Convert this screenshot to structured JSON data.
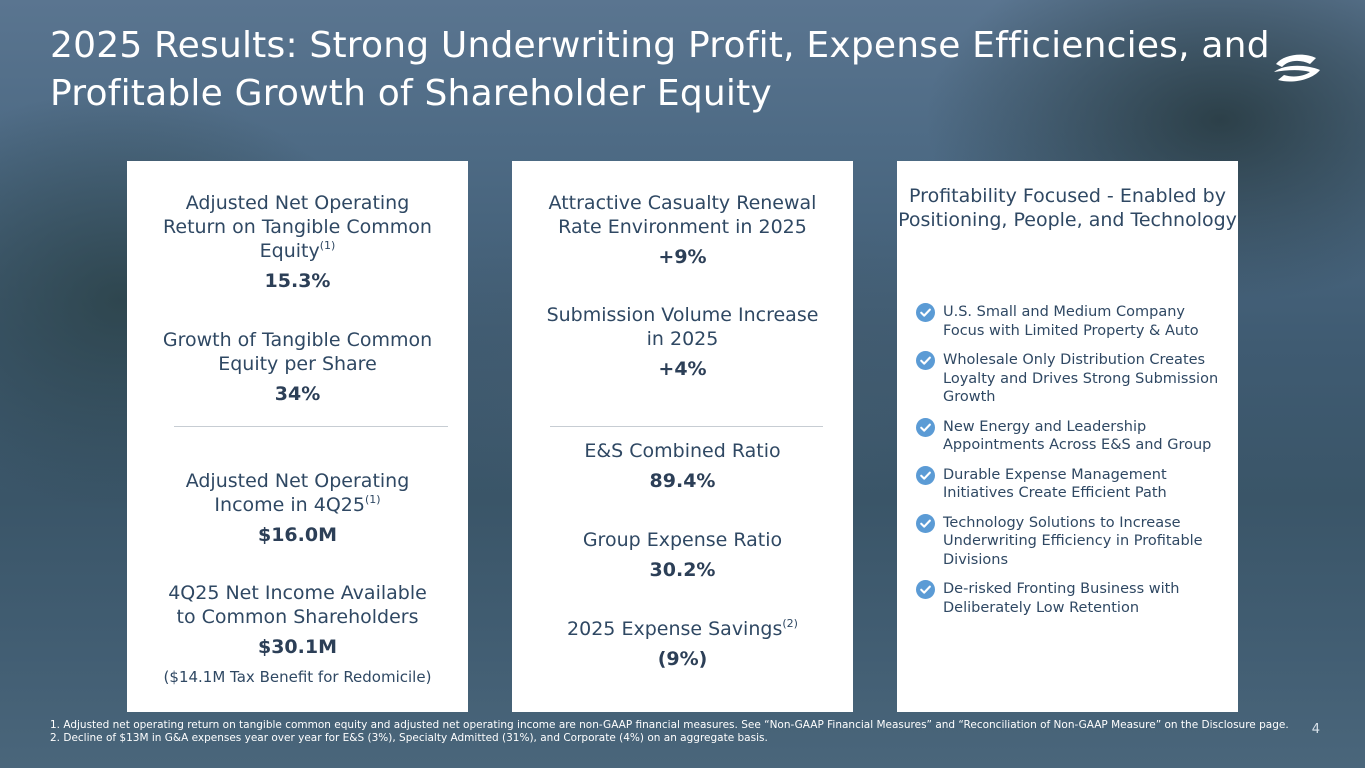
{
  "title": "2025 Results: Strong Underwriting Profit, Expense Efficiencies, and Profitable Growth of Shareholder Equity",
  "logo": {
    "icon": "company-logo-icon"
  },
  "card1": {
    "metric1": {
      "label": "Adjusted Net Operating Return on Tangible Common Equity",
      "sup": "(1)",
      "value": "15.3%"
    },
    "metric2": {
      "label": "Growth of Tangible Common Equity per Share",
      "value": "34%"
    },
    "metric3": {
      "label": "Adjusted Net Operating Income in 4Q25",
      "sup": "(1)",
      "value": "$16.0M"
    },
    "metric4": {
      "label": "4Q25 Net Income Available to Common Shareholders",
      "value": "$30.1M",
      "note": "($14.1M Tax Benefit for Redomicile)"
    }
  },
  "card2": {
    "metric1": {
      "label": "Attractive Casualty Renewal Rate Environment in 2025",
      "value": "+9%"
    },
    "metric2": {
      "label": "Submission Volume Increase in 2025",
      "value": "+4%"
    },
    "metric3": {
      "label": "E&S Combined Ratio",
      "value": "89.4%"
    },
    "metric4": {
      "label": "Group Expense Ratio",
      "value": "30.2%"
    },
    "metric5": {
      "label": "2025 Expense Savings",
      "sup": "(2)",
      "value": "(9%)"
    }
  },
  "card3": {
    "title": "Profitability Focused  - Enabled by Positioning, People, and Technology",
    "items": [
      "U.S. Small and Medium Company Focus with Limited Property & Auto",
      "Wholesale Only Distribution Creates Loyalty and Drives Strong Submission Growth",
      "New Energy and Leadership Appointments Across E&S and Group",
      "Durable Expense Management Initiatives Create Efficient Path",
      "Technology Solutions to Increase Underwriting Efficiency  in Profitable Divisions",
      "De-risked Fronting Business with Deliberately Low Retention"
    ],
    "check_color": "#5b9bd5"
  },
  "footnotes": [
    "1.  Adjusted net operating return on tangible common equity and adjusted net operating income are non-GAAP financial measures. See “Non-GAAP Financial Measures” and “Reconciliation of Non-GAAP Measure” on the Disclosure page.",
    "2.  Decline of  $13M in G&A expenses year over year for E&S (3%), Specialty Admitted (31%), and Corporate (4%) on an aggregate basis."
  ],
  "page_number": "4"
}
